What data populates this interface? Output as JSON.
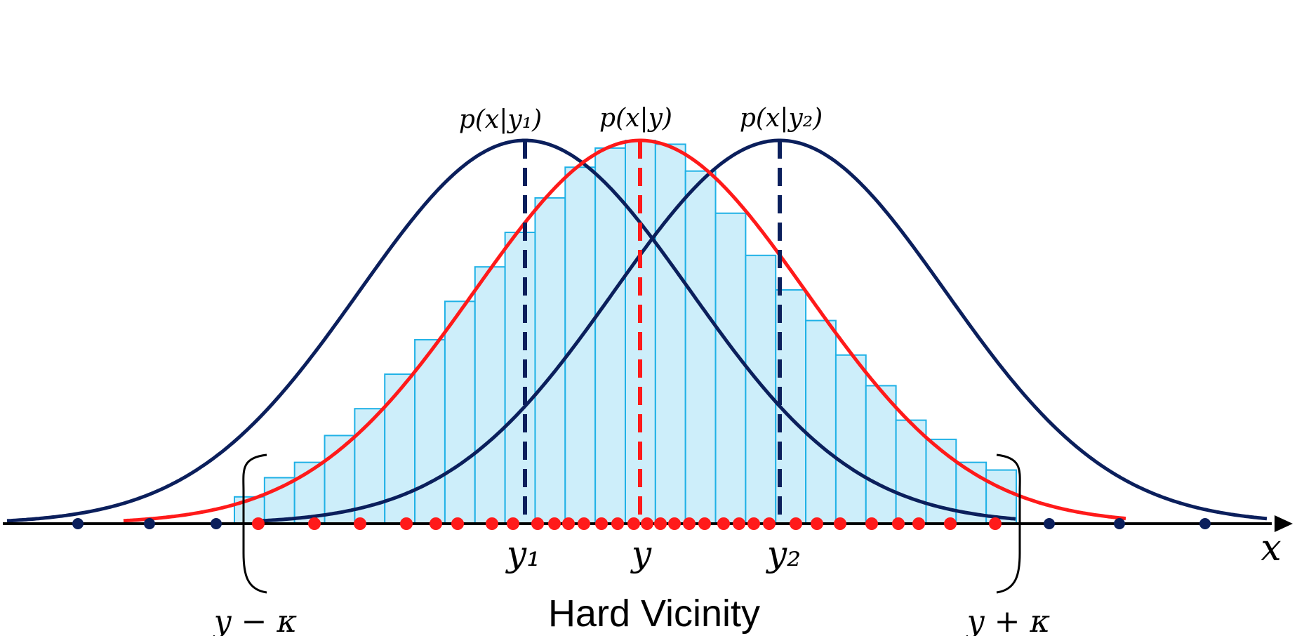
{
  "figure": {
    "labels": {
      "dens_y1": "p(x|y₁)",
      "dens_y": "p(x|y)",
      "dens_y2": "p(x|y₂)",
      "tick_y1": "y₁",
      "tick_y": "y",
      "tick_y2": "y₂",
      "axis_x": "x",
      "left_bound": "y − κ",
      "right_bound": "y + κ",
      "region": "Hard Vicinity"
    },
    "colors": {
      "navy": "#0b1f5c",
      "red": "#ff1a1a",
      "bar_fill": "#cdeefa",
      "bar_stroke": "#1fb1e6",
      "axis": "#000000"
    },
    "histogram_heights": [
      0.07,
      0.12,
      0.16,
      0.23,
      0.3,
      0.39,
      0.48,
      0.58,
      0.67,
      0.76,
      0.85,
      0.93,
      0.98,
      1.0,
      0.99,
      0.92,
      0.81,
      0.7,
      0.61,
      0.53,
      0.44,
      0.36,
      0.27,
      0.22,
      0.16,
      0.14
    ]
  }
}
